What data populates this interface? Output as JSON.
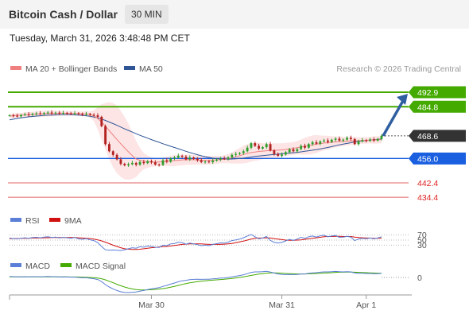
{
  "header": {
    "title": "Bitcoin Cash / Dollar",
    "timeframe": "30 MIN",
    "datetime": "Tuesday, March 31, 2026 3:48:48 PM CET"
  },
  "colors": {
    "ma20": "#f08080",
    "ma50": "#2f5597",
    "bollinger_fill": "#fde0e0",
    "resistance": "#44aa00",
    "support_blue": "#1a5fe0",
    "support_red": "#e06060",
    "current": "#333333",
    "candle_up": "#2e9e2e",
    "candle_down": "#b22222",
    "rsi": "#5b7fd6",
    "rsi_ma": "#d11111",
    "macd": "#5b7fd6",
    "macd_signal": "#44aa00",
    "arrow": "#2f5fa0"
  },
  "chart_data": [
    {
      "type": "candlestick",
      "legend": [
        "MA 20 + Bollinger Bands",
        "MA 50"
      ],
      "watermark": "Research © 2026 Trading Central",
      "ylim": [
        430,
        500
      ],
      "x_ticks": [
        "Mar 30",
        "Mar 31",
        "Apr 1"
      ],
      "levels": [
        {
          "label": "492.9",
          "value": 492.9,
          "kind": "resistance"
        },
        {
          "label": "484.8",
          "value": 484.8,
          "kind": "resistance"
        },
        {
          "label": "468.6",
          "value": 468.6,
          "kind": "current"
        },
        {
          "label": "456.0",
          "value": 456.0,
          "kind": "support_blue"
        },
        {
          "label": "442.4",
          "value": 442.4,
          "kind": "support_red"
        },
        {
          "label": "434.4",
          "value": 434.4,
          "kind": "support_red"
        }
      ],
      "forecast_arrow": {
        "from": 468.6,
        "to": 492.9
      },
      "close": [
        480.0,
        479.8,
        479.5,
        480.2,
        480.6,
        480.3,
        480.9,
        481.1,
        480.8,
        481.3,
        481.6,
        481.2,
        481.5,
        481.0,
        481.4,
        481.1,
        480.9,
        481.2,
        480.7,
        480.5,
        480.8,
        480.3,
        480.0,
        479.2,
        474.0,
        464.0,
        460.0,
        458.0,
        455.5,
        453.0,
        452.2,
        452.8,
        453.5,
        452.5,
        454.0,
        453.4,
        454.5,
        453.8,
        452.6,
        452.4,
        455.0,
        454.2,
        456.0,
        456.5,
        457.5,
        457.0,
        455.5,
        456.5,
        455.8,
        455.0,
        454.0,
        454.3,
        453.9,
        454.8,
        455.4,
        456.0,
        455.8,
        456.6,
        458.0,
        458.5,
        459.0,
        460.0,
        462.0,
        464.5,
        463.0,
        461.5,
        462.3,
        464.0,
        460.5,
        458.5,
        457.5,
        458.2,
        459.5,
        461.0,
        460.0,
        461.2,
        463.0,
        462.0,
        464.0,
        465.0,
        464.2,
        465.5,
        466.0,
        465.2,
        466.4,
        467.0,
        466.0,
        466.5,
        467.5,
        466.8,
        464.0,
        465.5,
        466.2,
        465.8,
        466.6,
        466.0,
        466.9,
        468.6
      ],
      "ma20": [
        479.6,
        479.8,
        480.0,
        480.1,
        480.3,
        480.4,
        480.5,
        480.7,
        480.8,
        480.9,
        481.0,
        481.1,
        481.1,
        481.2,
        481.2,
        481.2,
        481.1,
        481.1,
        481.0,
        480.9,
        480.8,
        480.5,
        479.8,
        478.3,
        476.3,
        474.0,
        471.5,
        469.0,
        466.6,
        464.2,
        461.9,
        459.7,
        457.6,
        455.7,
        455.0,
        454.5,
        454.2,
        454.0,
        453.9,
        454.0,
        454.2,
        454.4,
        454.6,
        454.8,
        455.0,
        455.2,
        455.3,
        455.3,
        455.3,
        455.2,
        455.0,
        455.0,
        455.0,
        455.1,
        455.2,
        455.4,
        455.6,
        455.9,
        456.3,
        456.9,
        457.5,
        458.2,
        458.8,
        459.3,
        459.6,
        459.9,
        460.1,
        460.3,
        460.4,
        460.5,
        460.6,
        460.8,
        461.0,
        461.3,
        461.6,
        462.0,
        462.4,
        462.8,
        463.2,
        463.6,
        464.0,
        464.3,
        464.6,
        464.8,
        465.0,
        465.2,
        465.4,
        465.5,
        465.6,
        465.7,
        465.8,
        465.9,
        466.0,
        466.1,
        466.2,
        466.3,
        466.4,
        466.5
      ],
      "ma50": [
        477.5,
        477.9,
        478.3,
        478.6,
        478.9,
        479.2,
        479.4,
        479.6,
        479.8,
        480.0,
        480.1,
        480.2,
        480.3,
        480.4,
        480.4,
        480.4,
        480.4,
        480.3,
        480.2,
        480.0,
        479.8,
        479.5,
        479.1,
        478.6,
        478.0,
        477.2,
        476.3,
        475.4,
        474.5,
        473.5,
        472.5,
        471.6,
        470.7,
        469.8,
        468.9,
        468.1,
        467.3,
        466.5,
        465.7,
        465.0,
        464.2,
        463.5,
        462.8,
        462.1,
        461.4,
        460.7,
        460.0,
        459.3,
        458.7,
        458.1,
        457.5,
        457.0,
        456.6,
        456.2,
        455.9,
        455.7,
        455.6,
        455.6,
        455.7,
        455.8,
        456.0,
        456.2,
        456.5,
        456.8,
        457.1,
        457.4,
        457.6,
        457.8,
        458.0,
        458.2,
        458.4,
        458.6,
        458.8,
        459.0,
        459.2,
        459.4,
        459.7,
        460.0,
        460.3,
        460.6,
        460.9,
        461.3,
        461.7,
        462.1,
        462.6,
        463.1,
        463.6,
        464.0,
        464.4,
        464.8,
        465.2,
        465.5,
        465.8,
        466.0,
        466.2,
        466.4,
        466.6,
        466.8
      ]
    },
    {
      "type": "line",
      "legend": [
        "RSI",
        "9MA"
      ],
      "ylim": [
        0,
        100
      ],
      "y_ticks": [
        "70",
        "50",
        "30"
      ],
      "rsi": [
        58,
        56,
        55,
        57,
        59,
        57,
        60,
        61,
        59,
        62,
        63,
        60,
        62,
        58,
        61,
        59,
        57,
        60,
        55,
        53,
        56,
        51,
        48,
        40,
        25,
        12,
        10,
        11,
        10,
        9,
        12,
        16,
        20,
        18,
        24,
        22,
        27,
        25,
        22,
        21,
        30,
        28,
        35,
        37,
        42,
        40,
        34,
        38,
        35,
        32,
        28,
        30,
        28,
        33,
        36,
        39,
        38,
        42,
        48,
        51,
        54,
        59,
        66,
        72,
        63,
        55,
        58,
        64,
        49,
        41,
        38,
        41,
        47,
        53,
        49,
        54,
        61,
        57,
        63,
        66,
        62,
        67,
        69,
        63,
        66,
        68,
        61,
        62,
        65,
        62,
        48,
        54,
        57,
        55,
        58,
        55,
        58,
        63
      ],
      "ma9": [
        56,
        56,
        56,
        57,
        57,
        57,
        58,
        58,
        58,
        59,
        59,
        60,
        60,
        60,
        60,
        60,
        60,
        60,
        59,
        58,
        57,
        56,
        54,
        51,
        47,
        42,
        36,
        30,
        25,
        20,
        16,
        14,
        13,
        13,
        14,
        16,
        18,
        20,
        21,
        23,
        24,
        25,
        27,
        29,
        31,
        33,
        34,
        35,
        35,
        35,
        35,
        34,
        33,
        33,
        33,
        33,
        34,
        35,
        37,
        40,
        43,
        46,
        50,
        54,
        57,
        58,
        58,
        59,
        58,
        56,
        54,
        52,
        50,
        49,
        49,
        50,
        51,
        53,
        55,
        57,
        59,
        61,
        63,
        64,
        64,
        65,
        65,
        64,
        64,
        64,
        62,
        60,
        59,
        58,
        58,
        57,
        57,
        58
      ]
    },
    {
      "type": "line",
      "legend": [
        "MACD",
        "MACD Signal"
      ],
      "y_ticks": [
        "0"
      ],
      "macd": [
        0.6,
        0.5,
        0.4,
        0.4,
        0.5,
        0.4,
        0.5,
        0.5,
        0.4,
        0.5,
        0.6,
        0.5,
        0.5,
        0.3,
        0.4,
        0.3,
        0.2,
        0.2,
        0.0,
        -0.2,
        -0.2,
        -0.5,
        -0.8,
        -1.3,
        -2.6,
        -4.5,
        -6.0,
        -7.2,
        -8.2,
        -9.0,
        -9.4,
        -9.5,
        -9.3,
        -9.1,
        -8.6,
        -8.2,
        -7.6,
        -7.1,
        -6.8,
        -6.4,
        -5.6,
        -5.0,
        -4.2,
        -3.5,
        -2.7,
        -2.1,
        -1.8,
        -1.4,
        -1.2,
        -1.1,
        -1.2,
        -1.1,
        -1.1,
        -0.9,
        -0.7,
        -0.4,
        -0.3,
        0.0,
        0.4,
        0.8,
        1.2,
        1.7,
        2.4,
        3.2,
        3.5,
        3.5,
        3.6,
        3.9,
        3.4,
        2.8,
        2.2,
        1.9,
        1.8,
        1.9,
        1.8,
        1.9,
        2.2,
        2.2,
        2.6,
        2.9,
        3.0,
        3.3,
        3.5,
        3.5,
        3.6,
        3.8,
        3.6,
        3.5,
        3.6,
        3.5,
        2.8,
        2.6,
        2.6,
        2.5,
        2.5,
        2.4,
        2.4,
        2.6
      ],
      "signal": [
        0.4,
        0.4,
        0.4,
        0.4,
        0.4,
        0.4,
        0.4,
        0.4,
        0.4,
        0.4,
        0.4,
        0.4,
        0.4,
        0.4,
        0.4,
        0.4,
        0.3,
        0.3,
        0.3,
        0.2,
        0.1,
        0.0,
        -0.2,
        -0.4,
        -0.8,
        -1.5,
        -2.4,
        -3.3,
        -4.3,
        -5.2,
        -6.0,
        -6.7,
        -7.2,
        -7.6,
        -7.8,
        -7.9,
        -7.8,
        -7.7,
        -7.5,
        -7.3,
        -7.0,
        -6.6,
        -6.1,
        -5.6,
        -5.0,
        -4.4,
        -3.9,
        -3.4,
        -3.0,
        -2.6,
        -2.3,
        -2.1,
        -1.9,
        -1.7,
        -1.5,
        -1.3,
        -1.1,
        -0.9,
        -0.6,
        -0.3,
        0.0,
        0.4,
        0.8,
        1.3,
        1.7,
        2.1,
        2.4,
        2.7,
        2.9,
        2.9,
        2.8,
        2.7,
        2.5,
        2.4,
        2.3,
        2.2,
        2.2,
        2.2,
        2.3,
        2.4,
        2.5,
        2.6,
        2.8,
        2.9,
        3.0,
        3.2,
        3.3,
        3.3,
        3.4,
        3.4,
        3.3,
        3.2,
        3.1,
        3.0,
        2.9,
        2.8,
        2.7,
        2.7
      ]
    }
  ]
}
